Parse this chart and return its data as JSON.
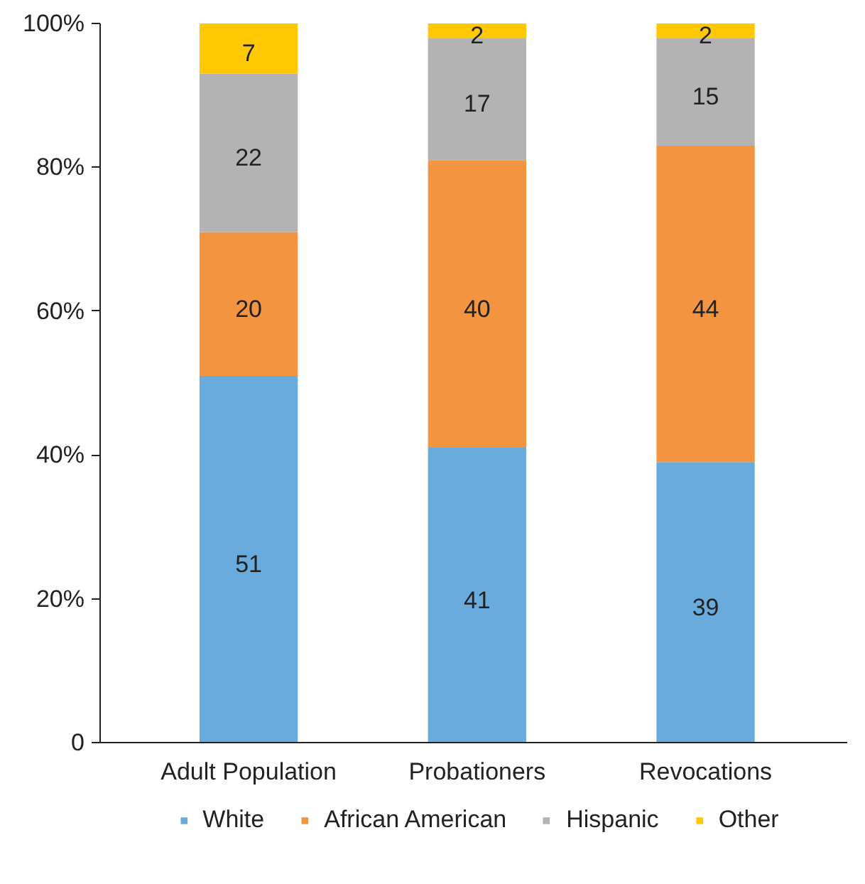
{
  "chart_data": {
    "type": "bar",
    "stacked": true,
    "categories": [
      "Adult Population",
      "Probationers",
      "Revocations"
    ],
    "series": [
      {
        "name": "White",
        "color": "#6aabdd",
        "values": [
          51,
          41,
          39
        ]
      },
      {
        "name": "African American",
        "color": "#f39440",
        "values": [
          20,
          40,
          44
        ]
      },
      {
        "name": "Hispanic",
        "color": "#b3b3b3",
        "values": [
          22,
          17,
          15
        ]
      },
      {
        "name": "Other",
        "color": "#ffc800",
        "values": [
          7,
          2,
          2
        ]
      }
    ],
    "ylim": [
      0,
      100
    ],
    "yticks": [
      0,
      {
        "value": 20,
        "label": "20%"
      },
      {
        "value": 40,
        "label": "40%"
      },
      {
        "value": 60,
        "label": "60%"
      },
      {
        "value": 80,
        "label": "80%"
      },
      {
        "value": 100,
        "label": "100%"
      }
    ],
    "data_labels": true,
    "grid": false,
    "legend": "bottom"
  }
}
